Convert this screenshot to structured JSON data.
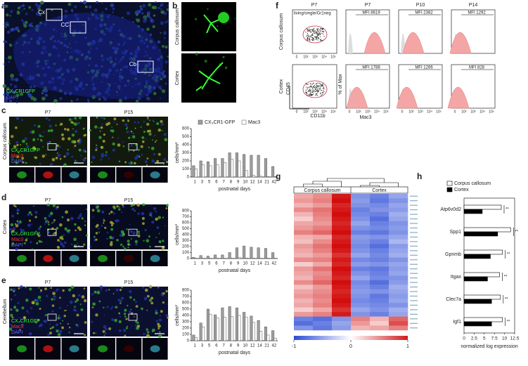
{
  "a": {
    "label": "a",
    "regions": [
      "Cx",
      "CC",
      "Cb"
    ],
    "stain": [
      "CX₃CR1GFP",
      "DAPI"
    ]
  },
  "b": {
    "label": "b",
    "rows": [
      "Corpus callosum",
      "Cortex"
    ]
  },
  "c": {
    "label": "c",
    "region": "Corpus callosum",
    "ages": [
      "P7",
      "P15"
    ],
    "stain": [
      "CX₃CR1GFP",
      "Mac3",
      "DAPI"
    ],
    "chart": {
      "type": "bar",
      "ylabel": "cells/mm²",
      "xlabel": "postnatal days",
      "categories": [
        "1",
        "3",
        "5",
        "6",
        "7",
        "8",
        "9",
        "10",
        "12",
        "14",
        "21",
        "42"
      ],
      "series": [
        {
          "name": "CX₃CR1-GFP",
          "color": "#9e9e9e",
          "values": [
            140,
            200,
            190,
            230,
            230,
            300,
            300,
            280,
            270,
            270,
            230,
            130
          ]
        },
        {
          "name": "Mac3",
          "color": "#ffffff",
          "values": [
            100,
            150,
            140,
            150,
            180,
            220,
            200,
            80,
            20,
            10,
            5,
            5
          ]
        }
      ],
      "ylim": [
        0,
        600
      ],
      "yticks": [
        0,
        100,
        200,
        300,
        400,
        500,
        600
      ]
    }
  },
  "d": {
    "label": "d",
    "region": "Cortex",
    "ages": [
      "P7",
      "P15"
    ],
    "stain": [
      "CX₃CR1GFP",
      "Mac3",
      "DAPI"
    ],
    "chart": {
      "type": "bar",
      "ylabel": "cells/mm²",
      "xlabel": "postnatal days",
      "categories": [
        "1",
        "3",
        "5",
        "6",
        "7",
        "8",
        "9",
        "10",
        "12",
        "14",
        "21",
        "42"
      ],
      "series": [
        {
          "color": "#9e9e9e",
          "values": [
            20,
            50,
            40,
            60,
            60,
            100,
            180,
            210,
            190,
            180,
            170,
            100
          ]
        },
        {
          "color": "#ffffff",
          "values": [
            5,
            5,
            5,
            5,
            5,
            5,
            20,
            10,
            5,
            5,
            5,
            5
          ]
        }
      ],
      "ylim": [
        0,
        800
      ],
      "yticks": [
        0,
        100,
        200,
        300,
        400,
        500,
        600,
        700,
        800
      ]
    }
  },
  "e": {
    "label": "e",
    "region": "Cerebellum",
    "ages": [
      "P7",
      "P15"
    ],
    "stain": [
      "CX₃CR1GFP",
      "Mac3",
      "DAPI"
    ],
    "chart": {
      "type": "bar",
      "ylabel": "cells/mm²",
      "xlabel": "postnatal days",
      "categories": [
        "1",
        "3",
        "5",
        "6",
        "7",
        "8",
        "9",
        "10",
        "12",
        "14",
        "21",
        "42"
      ],
      "series": [
        {
          "color": "#9e9e9e",
          "values": [
            90,
            280,
            500,
            410,
            520,
            540,
            520,
            450,
            390,
            320,
            220,
            160
          ]
        },
        {
          "color": "#ffffff",
          "values": [
            50,
            220,
            420,
            360,
            370,
            380,
            400,
            370,
            290,
            150,
            90,
            40
          ]
        }
      ],
      "ylim": [
        0,
        800
      ],
      "yticks": [
        0,
        100,
        200,
        300,
        400,
        500,
        600,
        700,
        800
      ]
    }
  },
  "f": {
    "label": "f",
    "gate": "living/single/Gr1neg",
    "rows": [
      "Corpus callosum",
      "Cortex"
    ],
    "cols": [
      "P7",
      "P7",
      "P10",
      "P14"
    ],
    "scatter_y": "CD45",
    "scatter_x": "CD11b",
    "hist_y": "% of Max",
    "hist_x": "Mac3",
    "mfi": [
      [
        "MFI 8619",
        "MFI 2382",
        "MFI 1292"
      ],
      [
        "MFI 1788",
        "MFI 1266",
        "MFI 828"
      ]
    ],
    "ticks": [
      "0",
      "10²",
      "10³",
      "10⁴",
      "10⁵"
    ]
  },
  "g": {
    "label": "g",
    "groups": [
      "Corpus callosum",
      "Cortex"
    ],
    "colorbar_ticks": [
      -1,
      0,
      1
    ],
    "values": [
      [
        0.35,
        0.45,
        0.9,
        -0.6,
        -0.7,
        -0.5
      ],
      [
        0.4,
        0.5,
        0.95,
        -0.55,
        -0.75,
        -0.6
      ],
      [
        0.3,
        0.4,
        0.85,
        -0.6,
        -0.65,
        -0.5
      ],
      [
        0.45,
        0.55,
        0.9,
        -0.7,
        -0.6,
        -0.55
      ],
      [
        0.3,
        0.5,
        0.95,
        -0.65,
        -0.7,
        -0.45
      ],
      [
        0.2,
        0.45,
        0.9,
        -0.6,
        -0.8,
        -0.5
      ],
      [
        0.35,
        0.4,
        0.85,
        -0.5,
        -0.7,
        -0.6
      ],
      [
        0.4,
        0.5,
        0.9,
        -0.6,
        -0.65,
        -0.55
      ],
      [
        0.5,
        0.6,
        0.95,
        -0.7,
        -0.75,
        -0.6
      ],
      [
        0.3,
        0.35,
        0.85,
        -0.55,
        -0.6,
        -0.5
      ],
      [
        0.25,
        0.45,
        0.9,
        -0.6,
        -0.7,
        -0.4
      ],
      [
        0.4,
        0.55,
        0.95,
        -0.65,
        -0.8,
        -0.55
      ],
      [
        0.35,
        0.5,
        0.9,
        -0.6,
        -0.7,
        -0.5
      ],
      [
        0.3,
        0.4,
        0.8,
        -0.5,
        -0.65,
        -0.45
      ],
      [
        0.45,
        0.5,
        0.9,
        -0.65,
        -0.7,
        -0.6
      ],
      [
        0.2,
        0.35,
        0.85,
        -0.55,
        -0.6,
        -0.5
      ],
      [
        0.4,
        0.55,
        0.95,
        -0.7,
        -0.75,
        -0.55
      ],
      [
        0.35,
        0.45,
        0.9,
        -0.6,
        -0.7,
        -0.5
      ],
      [
        0.3,
        0.5,
        0.85,
        -0.5,
        -0.65,
        -0.6
      ],
      [
        0.45,
        0.6,
        0.95,
        -0.65,
        -0.8,
        -0.55
      ],
      [
        0.25,
        0.4,
        0.9,
        -0.6,
        -0.7,
        -0.45
      ],
      [
        0.35,
        0.45,
        0.85,
        -0.55,
        -0.6,
        -0.5
      ],
      [
        0.4,
        0.5,
        0.9,
        -0.6,
        -0.75,
        -0.55
      ],
      [
        0.3,
        0.45,
        0.95,
        -0.65,
        -0.7,
        -0.5
      ],
      [
        0.35,
        0.5,
        0.9,
        -0.6,
        -0.65,
        -0.6
      ],
      [
        0.2,
        0.35,
        0.8,
        -0.5,
        -0.6,
        -0.45
      ],
      [
        0.4,
        0.5,
        0.9,
        -0.6,
        -0.7,
        -0.5
      ],
      [
        -0.7,
        -0.8,
        -0.6,
        0.5,
        0.3,
        0.6
      ],
      [
        -0.8,
        -0.7,
        -0.5,
        0.4,
        0.2,
        0.7
      ],
      [
        -0.6,
        -0.75,
        -0.55,
        0.3,
        0.35,
        0.5
      ]
    ]
  },
  "h": {
    "label": "h",
    "categories": [
      "Atp6v0d2",
      "Spp1",
      "Gpnmb",
      "Itgax",
      "Clec7a",
      "Igf1"
    ],
    "series": [
      {
        "name": "Corpus callosum",
        "color": "#ffffff",
        "values": [
          9.2,
          11.5,
          9.5,
          8.8,
          9.0,
          9.5
        ]
      },
      {
        "name": "Cortex",
        "color": "#000000",
        "values": [
          4.5,
          8.3,
          6.5,
          5.8,
          6.8,
          6.8
        ]
      }
    ],
    "significance": [
      "**",
      "**",
      "**",
      "**",
      "**",
      "**"
    ],
    "xlim": [
      0,
      12.5
    ],
    "xticks": [
      0,
      2.5,
      5,
      7.5,
      10,
      12.5
    ],
    "xlabel": "normalized log expression"
  }
}
